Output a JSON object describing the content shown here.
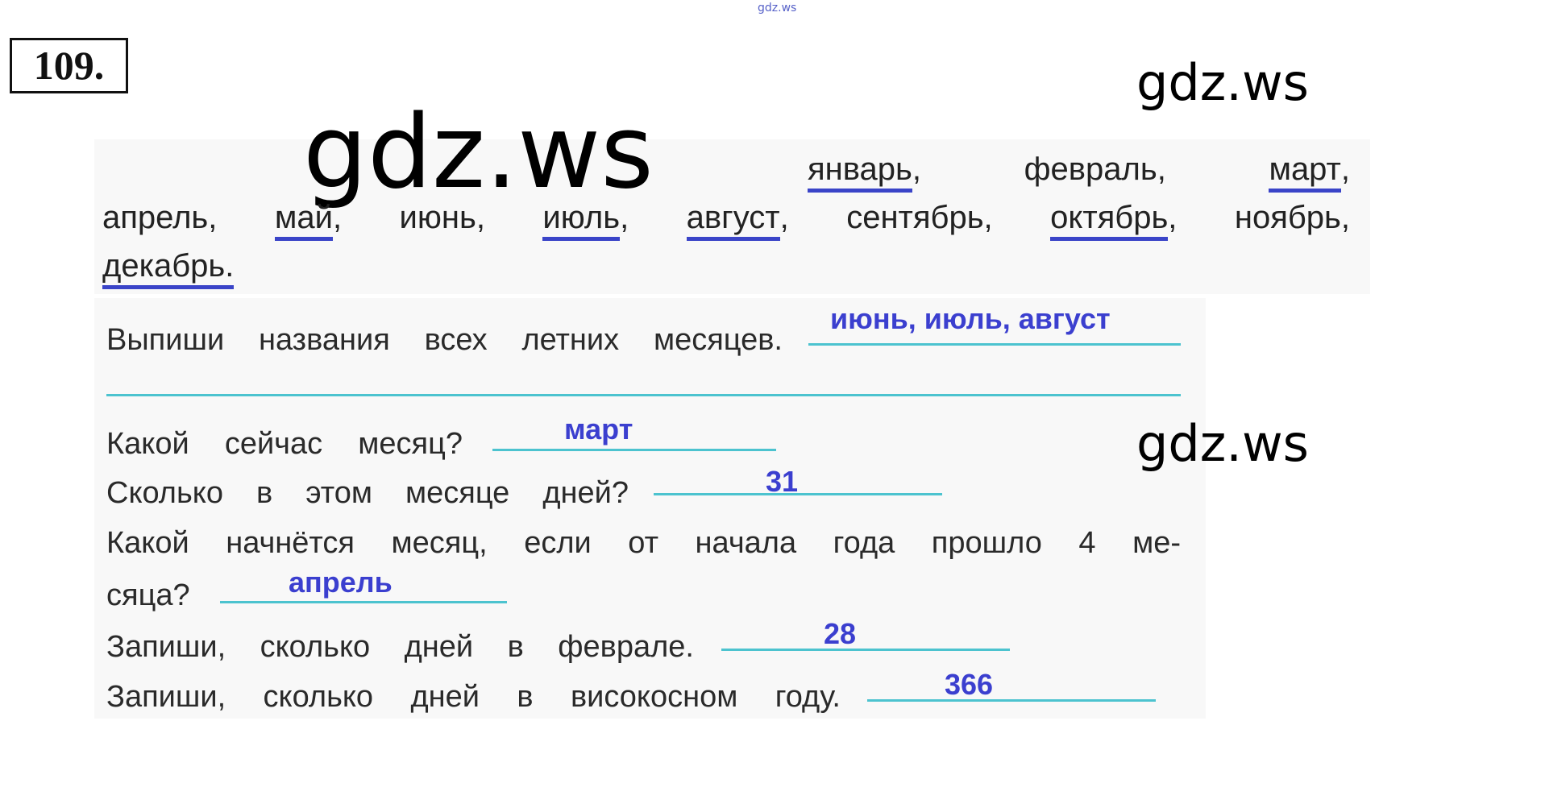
{
  "watermark_small": "gdz.ws",
  "watermark_big": "gdz.ws",
  "watermark_top_right": "gdz.ws",
  "watermark_mid_right": "gdz.ws",
  "exercise_number": "109.",
  "months": {
    "line1": [
      {
        "word": "январь",
        "punct": ",",
        "underlined": true
      },
      {
        "word": "февраль",
        "punct": ",",
        "underlined": false
      },
      {
        "word": "март",
        "punct": ",",
        "underlined": true
      }
    ],
    "line2": [
      {
        "word": "апрель",
        "punct": ",",
        "underlined": false
      },
      {
        "word": "май",
        "punct": ",",
        "underlined": true
      },
      {
        "word": "июнь",
        "punct": ",",
        "underlined": false
      },
      {
        "word": "июль",
        "punct": ",",
        "underlined": true
      },
      {
        "word": "август",
        "punct": ",",
        "underlined": true
      },
      {
        "word": "сентябрь",
        "punct": ",",
        "underlined": false
      },
      {
        "word": "октябрь",
        "punct": ",",
        "underlined": true
      },
      {
        "word": "ноябрь",
        "punct": ",",
        "underlined": false
      }
    ],
    "line3": [
      {
        "word": "декабрь.",
        "punct": "",
        "underlined": true
      }
    ]
  },
  "questions": {
    "q1": "Выпиши названия всех летних месяцев.",
    "q2": "Какой сейчас месяц?",
    "q3": "Сколько в этом месяце дней?",
    "q4a": "Какой начнётся месяц, если от начала года прошло 4 ме-",
    "q4b": "сяца?",
    "q5": "Запиши, сколько дней в феврале.",
    "q6": "Запиши, сколько дней в високосном году."
  },
  "answers": {
    "a1": "июнь, июль, август",
    "a2": "март",
    "a3": "31",
    "a4": "апрель",
    "a5": "28",
    "a6": "366"
  },
  "colors": {
    "underline_month": "#3a44c8",
    "answer": "#3b3fcf",
    "answer_line": "#4cc3cf"
  }
}
